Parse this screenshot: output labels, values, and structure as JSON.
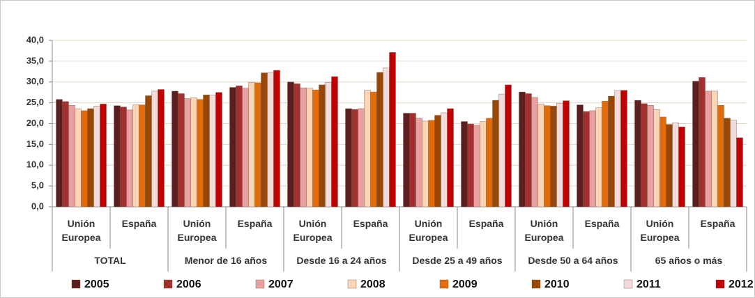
{
  "chart_data": {
    "type": "bar",
    "categories": [
      "Unión Europea",
      "España",
      "Unión Europea",
      "España",
      "Unión Europea",
      "España",
      "Unión Europea",
      "España",
      "Unión Europea",
      "España",
      "Unión Europea",
      "España"
    ],
    "groups": [
      "TOTAL",
      "Menor de 16 años",
      "Desde 16 a 24 años",
      "Desde 25 a 49 años",
      "Desde 50 a 64 años",
      "65 años o más"
    ],
    "series": [
      {
        "name": "2005",
        "color": "#5b1f1f",
        "values": [
          25.8,
          24.3,
          27.8,
          28.7,
          30.0,
          23.6,
          22.5,
          20.5,
          27.6,
          24.5,
          25.6,
          30.2
        ]
      },
      {
        "name": "2006",
        "color": "#a2302e",
        "values": [
          25.3,
          24.0,
          27.2,
          29.1,
          29.6,
          23.4,
          22.5,
          19.9,
          27.2,
          22.9,
          24.8,
          31.1
        ]
      },
      {
        "name": "2007",
        "color": "#e8a0a0",
        "values": [
          24.4,
          23.3,
          26.0,
          28.5,
          28.6,
          23.6,
          21.3,
          19.6,
          26.3,
          23.1,
          24.4,
          27.8
        ]
      },
      {
        "name": "2008",
        "color": "#fbd5b5",
        "values": [
          23.6,
          24.5,
          26.2,
          29.9,
          28.5,
          28.0,
          20.6,
          20.5,
          24.7,
          23.8,
          23.4,
          27.8
        ]
      },
      {
        "name": "2009",
        "color": "#e36c0a",
        "values": [
          23.1,
          24.5,
          25.8,
          29.8,
          28.1,
          27.6,
          20.8,
          21.3,
          24.3,
          25.4,
          21.6,
          24.4
        ]
      },
      {
        "name": "2010",
        "color": "#984806",
        "values": [
          23.6,
          26.7,
          26.9,
          32.2,
          29.3,
          32.3,
          22.0,
          25.6,
          24.2,
          26.6,
          19.8,
          21.3
        ]
      },
      {
        "name": "2011",
        "color": "#f2dcdb",
        "values": [
          24.2,
          27.8,
          26.9,
          32.3,
          29.9,
          33.4,
          22.6,
          27.1,
          24.9,
          27.9,
          20.2,
          20.9
        ]
      },
      {
        "name": "2012",
        "color": "#c00000",
        "values": [
          24.7,
          28.2,
          27.5,
          32.8,
          31.3,
          37.1,
          23.6,
          29.3,
          25.5,
          28.0,
          19.2,
          16.6
        ]
      }
    ],
    "ylim": [
      0,
      40
    ],
    "yticks": [
      {
        "value": 0,
        "label": "0,0"
      },
      {
        "value": 5,
        "label": "5,0"
      },
      {
        "value": 10,
        "label": "10,0"
      },
      {
        "value": 15,
        "label": "15,0"
      },
      {
        "value": 20,
        "label": "20,0"
      },
      {
        "value": 25,
        "label": "25,0"
      },
      {
        "value": 30,
        "label": "30,0"
      },
      {
        "value": 35,
        "label": "35,0"
      },
      {
        "value": 40,
        "label": "40,0"
      }
    ],
    "grid": true,
    "legend": "bottom"
  }
}
